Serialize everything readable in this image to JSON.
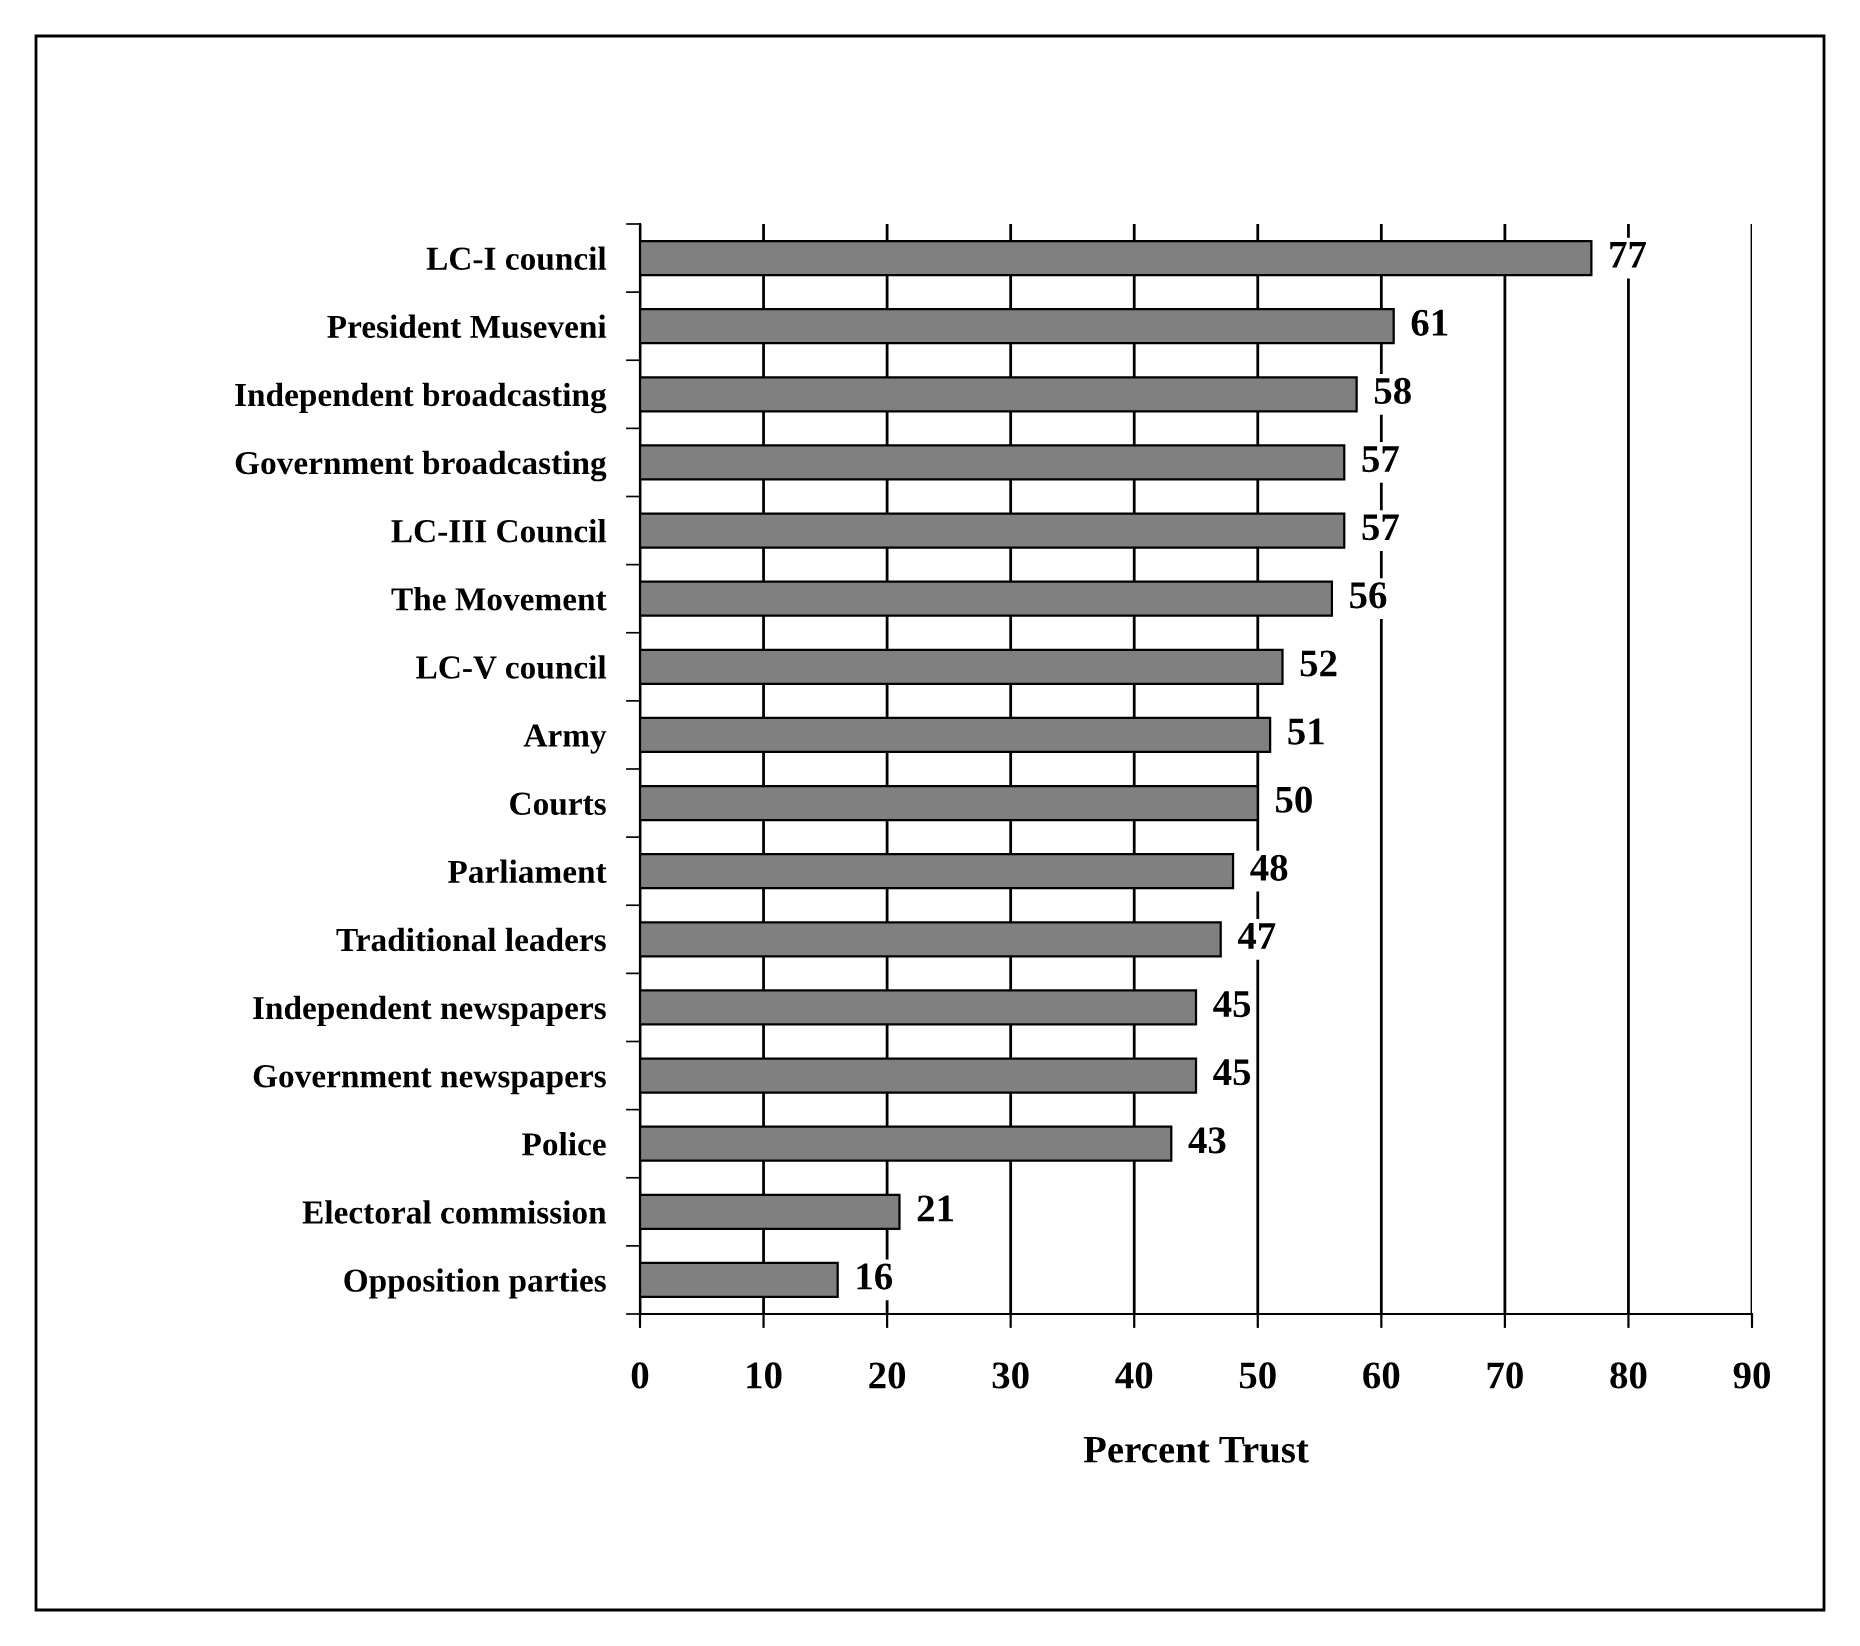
{
  "chart_data": {
    "type": "bar",
    "orientation": "horizontal",
    "xlabel": "Percent Trust",
    "categories": [
      "LC-I council",
      "President Museveni",
      "Independent broadcasting",
      "Government broadcasting",
      "LC-III Council",
      "The Movement",
      "LC-V council",
      "Army",
      "Courts",
      "Parliament",
      "Traditional leaders",
      "Independent newspapers",
      "Government newspapers",
      "Police",
      "Electoral commission",
      "Opposition parties"
    ],
    "values": [
      77,
      61,
      58,
      57,
      57,
      56,
      52,
      51,
      50,
      48,
      47,
      45,
      45,
      43,
      21,
      16
    ],
    "color": "#808080",
    "xlim": [
      0,
      90
    ],
    "xticks": [
      0,
      10,
      20,
      30,
      40,
      50,
      60,
      70,
      80,
      90
    ],
    "grid": "x",
    "data_labels": true
  }
}
